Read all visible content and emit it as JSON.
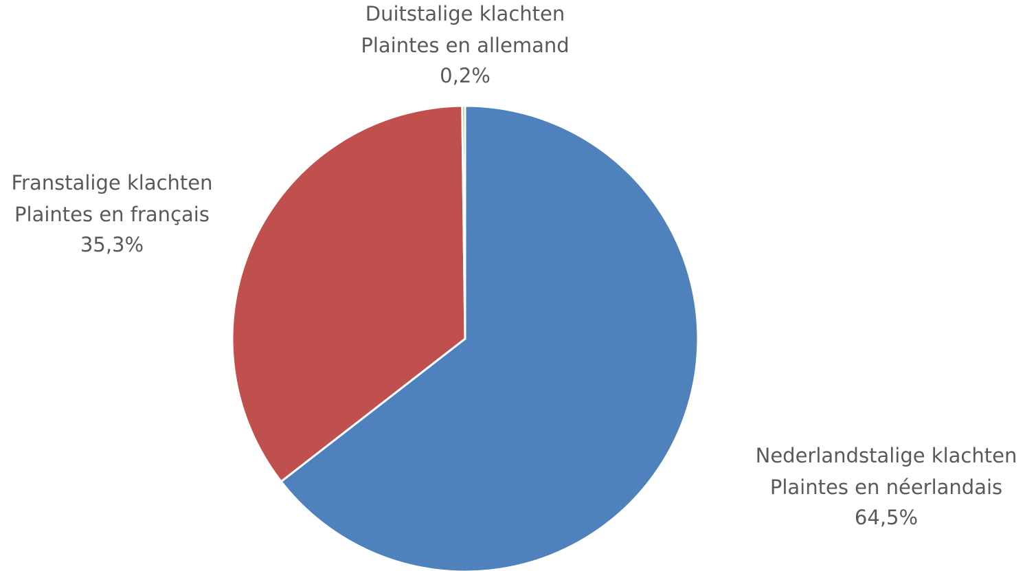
{
  "chart_data": {
    "type": "pie",
    "categories": [
      [
        "Nederlandstalige klachten",
        "Plaintes en néerlandais"
      ],
      [
        "Franstalige klachten",
        "Plaintes en français"
      ],
      [
        "Duitstalige klachten",
        "Plaintes en allemand"
      ]
    ],
    "values": [
      64.5,
      35.3,
      0.2
    ],
    "value_labels": [
      "64,5%",
      "35,3%",
      "0,2%"
    ],
    "colors": [
      "#4f81bd",
      "#c0504d",
      "#9bbb59"
    ]
  }
}
